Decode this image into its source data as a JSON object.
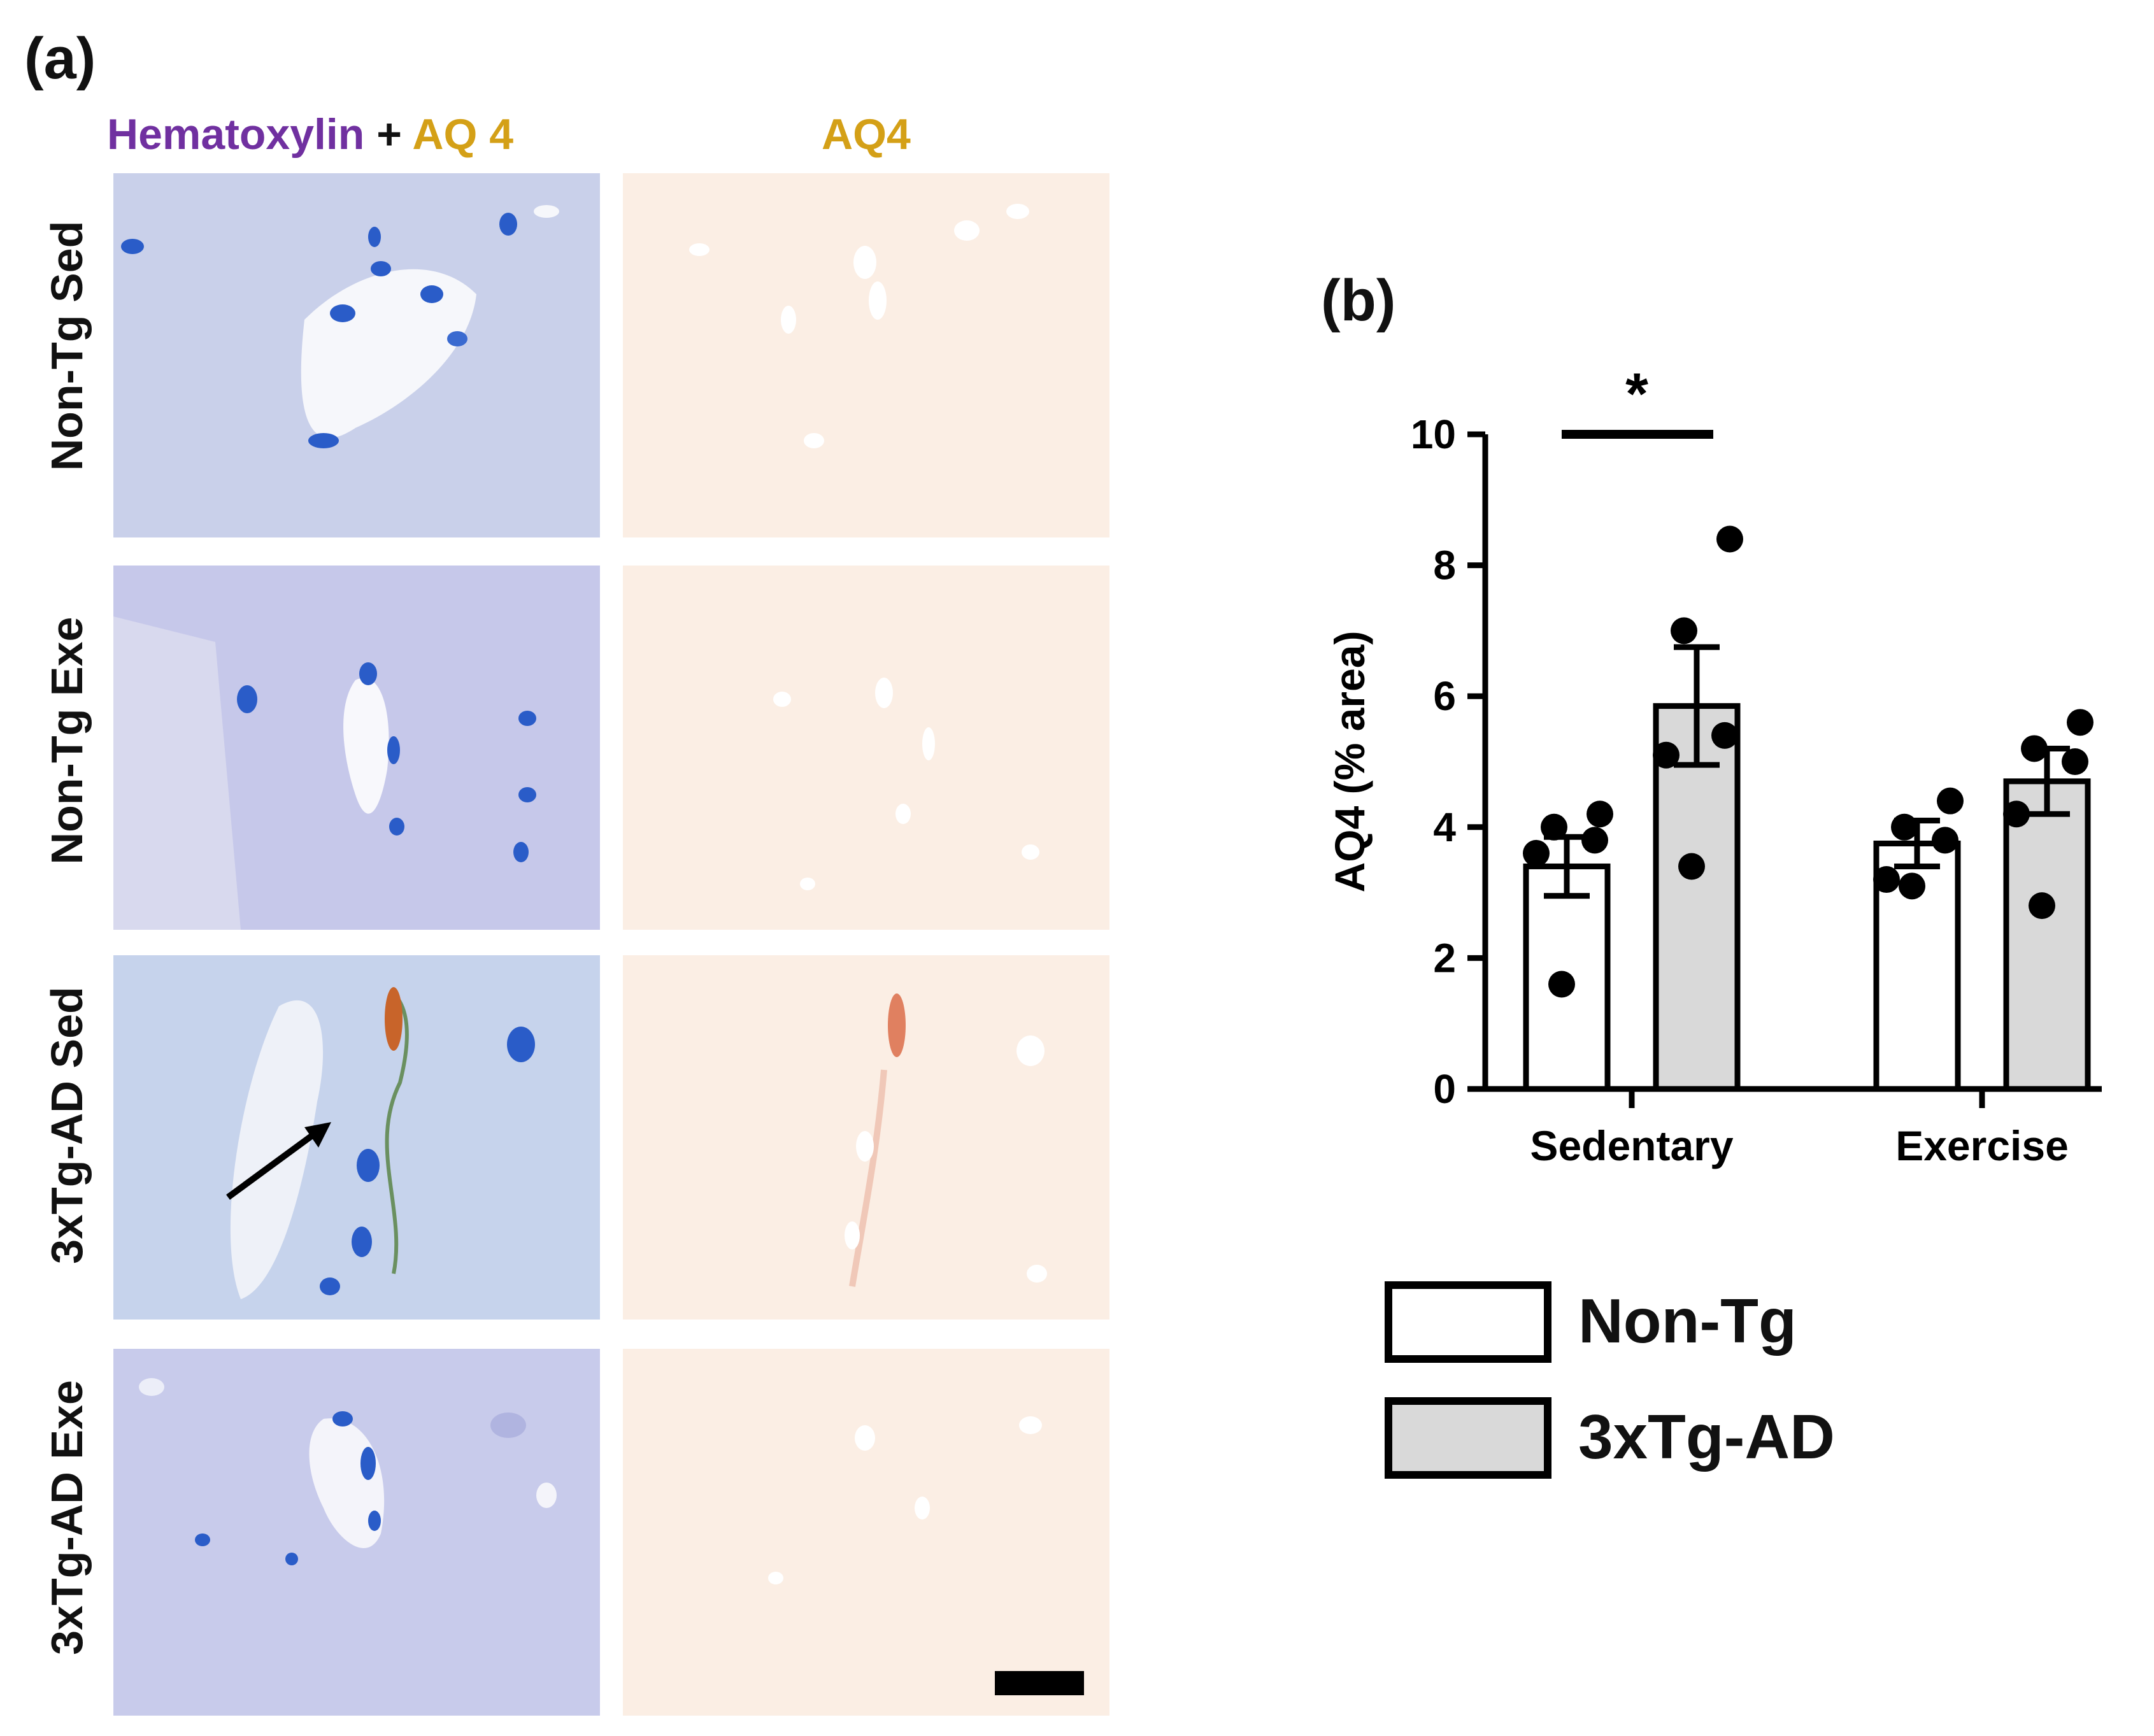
{
  "panel_a": {
    "label": "(a)",
    "col_titles": {
      "merged_part1": "Hematoxylin",
      "merged_plus": " + ",
      "merged_part2": "AQ 4",
      "single": "AQ4"
    },
    "rows": [
      "Non-Tg Sed",
      "Non-Tg Exe",
      "3xTg-AD Sed",
      "3xTg-AD Exe"
    ],
    "colors": {
      "hematoxylin": "#7030a0",
      "aq4": "#d4a017",
      "he_background": "#c8cde8",
      "aq4_background": "#fbeee4",
      "nucleus": "#2a5cc8",
      "aq4_stain": "#c8642a"
    }
  },
  "panel_b": {
    "label": "(b)",
    "significance": "*",
    "legend": [
      {
        "label": "Non-Tg",
        "color": "#ffffff"
      },
      {
        "label": "3xTg-AD",
        "color": "#d9d9d9"
      }
    ]
  },
  "chart_data": {
    "type": "bar",
    "categories": [
      "Sedentary",
      "Exercise"
    ],
    "ylabel": "AQ4 (% area)",
    "xlabel": "",
    "ylim": [
      0,
      10
    ],
    "yticks": [
      0,
      2,
      4,
      6,
      8,
      10
    ],
    "series": [
      {
        "name": "Non-Tg",
        "color": "#ffffff",
        "values": [
          3.4,
          3.75
        ],
        "sem": [
          0.45,
          0.35
        ],
        "points": [
          [
            1.6,
            3.6,
            3.8,
            4.0,
            4.2
          ],
          [
            3.1,
            3.2,
            3.8,
            4.0,
            4.4
          ]
        ]
      },
      {
        "name": "3xTg-AD",
        "color": "#d9d9d9",
        "values": [
          5.85,
          4.7
        ],
        "sem": [
          0.9,
          0.5
        ],
        "points": [
          [
            3.4,
            5.1,
            5.4,
            7.0,
            8.4
          ],
          [
            2.8,
            4.2,
            5.0,
            5.2,
            5.6
          ]
        ]
      }
    ]
  }
}
